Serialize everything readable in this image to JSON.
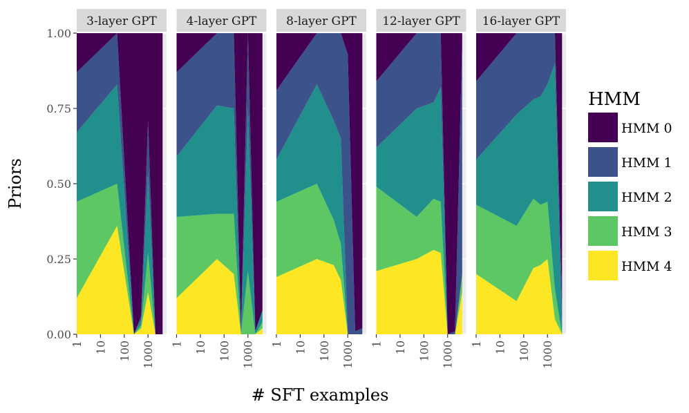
{
  "chart_data": {
    "type": "area",
    "stacked": true,
    "x_scale": "log10",
    "xlabel": "# SFT examples",
    "ylabel": "Priors",
    "ylim": [
      0,
      1
    ],
    "y_ticks": [
      "0.00",
      "0.25",
      "0.50",
      "0.75",
      "1.00"
    ],
    "x_ticks": [
      "1",
      "10",
      "100",
      "1000"
    ],
    "grid": true,
    "legend": {
      "title": "HMM",
      "position": "right",
      "entries": [
        "HMM 0",
        "HMM 1",
        "HMM 2",
        "HMM 3",
        "HMM 4"
      ]
    },
    "colors": [
      "#440154",
      "#3b528b",
      "#21908c",
      "#5dc863",
      "#fde725"
    ],
    "panels": [
      {
        "title": "3-layer GPT",
        "x": [
          1,
          50,
          256,
          512,
          1000,
          2048,
          4096
        ],
        "series": [
          {
            "name": "HMM 4",
            "values": [
              0.12,
              0.36,
              0.0,
              0.02,
              0.14,
              0.0,
              0.0
            ]
          },
          {
            "name": "HMM 3",
            "values": [
              0.32,
              0.14,
              0.0,
              0.01,
              0.13,
              0.0,
              0.0
            ]
          },
          {
            "name": "HMM 2",
            "values": [
              0.23,
              0.33,
              0.0,
              0.02,
              0.27,
              0.0,
              0.0
            ]
          },
          {
            "name": "HMM 1",
            "values": [
              0.2,
              0.17,
              0.0,
              0.01,
              0.17,
              0.0,
              0.0
            ]
          },
          {
            "name": "HMM 0",
            "values": [
              0.13,
              0.0,
              1.0,
              0.94,
              0.29,
              1.0,
              1.0
            ]
          }
        ]
      },
      {
        "title": "4-layer GPT",
        "x": [
          1,
          50,
          256,
          512,
          1000,
          2048,
          4096
        ],
        "series": [
          {
            "name": "HMM 4",
            "values": [
              0.12,
              0.25,
              0.2,
              0.0,
              0.0,
              0.0,
              0.02
            ]
          },
          {
            "name": "HMM 3",
            "values": [
              0.27,
              0.15,
              0.2,
              0.0,
              0.21,
              0.0,
              0.02
            ]
          },
          {
            "name": "HMM 2",
            "values": [
              0.2,
              0.36,
              0.35,
              0.0,
              0.54,
              0.01,
              0.04
            ]
          },
          {
            "name": "HMM 1",
            "values": [
              0.28,
              0.24,
              0.25,
              0.01,
              0.25,
              0.0,
              0.0
            ]
          },
          {
            "name": "HMM 0",
            "values": [
              0.13,
              0.0,
              0.0,
              0.99,
              0.0,
              0.99,
              0.92
            ]
          }
        ]
      },
      {
        "title": "8-layer GPT",
        "x": [
          1,
          50,
          256,
          512,
          1000,
          2048,
          4096
        ],
        "series": [
          {
            "name": "HMM 4",
            "values": [
              0.19,
              0.25,
              0.23,
              0.18,
              0.0,
              0.0,
              0.0
            ]
          },
          {
            "name": "HMM 3",
            "values": [
              0.25,
              0.25,
              0.15,
              0.12,
              0.0,
              0.0,
              0.0
            ]
          },
          {
            "name": "HMM 2",
            "values": [
              0.14,
              0.33,
              0.33,
              0.35,
              0.0,
              0.0,
              0.0
            ]
          },
          {
            "name": "HMM 1",
            "values": [
              0.23,
              0.17,
              0.29,
              0.35,
              0.93,
              0.01,
              0.02
            ]
          },
          {
            "name": "HMM 0",
            "values": [
              0.19,
              0.0,
              0.0,
              0.0,
              0.07,
              0.99,
              0.98
            ]
          }
        ]
      },
      {
        "title": "12-layer GPT",
        "x": [
          1,
          50,
          256,
          512,
          1000,
          2048,
          4096
        ],
        "series": [
          {
            "name": "HMM 4",
            "values": [
              0.21,
              0.25,
              0.28,
              0.27,
              0.0,
              0.0,
              0.14
            ]
          },
          {
            "name": "HMM 3",
            "values": [
              0.28,
              0.14,
              0.17,
              0.17,
              0.0,
              0.0,
              0.06
            ]
          },
          {
            "name": "HMM 2",
            "values": [
              0.13,
              0.36,
              0.32,
              0.38,
              0.0,
              0.0,
              0.0
            ]
          },
          {
            "name": "HMM 1",
            "values": [
              0.22,
              0.25,
              0.23,
              0.18,
              0.0,
              0.01,
              0.77
            ]
          },
          {
            "name": "HMM 0",
            "values": [
              0.16,
              0.0,
              0.0,
              0.0,
              1.0,
              0.99,
              0.03
            ]
          }
        ]
      },
      {
        "title": "16-layer GPT",
        "x": [
          1,
          50,
          256,
          512,
          1000,
          2048,
          4096
        ],
        "series": [
          {
            "name": "HMM 4",
            "values": [
              0.2,
              0.11,
              0.22,
              0.23,
              0.25,
              0.05,
              0.0
            ]
          },
          {
            "name": "HMM 3",
            "values": [
              0.23,
              0.25,
              0.23,
              0.2,
              0.19,
              0.1,
              0.0
            ]
          },
          {
            "name": "HMM 2",
            "values": [
              0.15,
              0.37,
              0.33,
              0.36,
              0.39,
              0.75,
              0.0
            ]
          },
          {
            "name": "HMM 1",
            "values": [
              0.26,
              0.27,
              0.22,
              0.21,
              0.17,
              0.1,
              0.1
            ]
          },
          {
            "name": "HMM 0",
            "values": [
              0.16,
              0.0,
              0.0,
              0.0,
              0.0,
              0.0,
              0.9
            ]
          }
        ]
      }
    ]
  }
}
